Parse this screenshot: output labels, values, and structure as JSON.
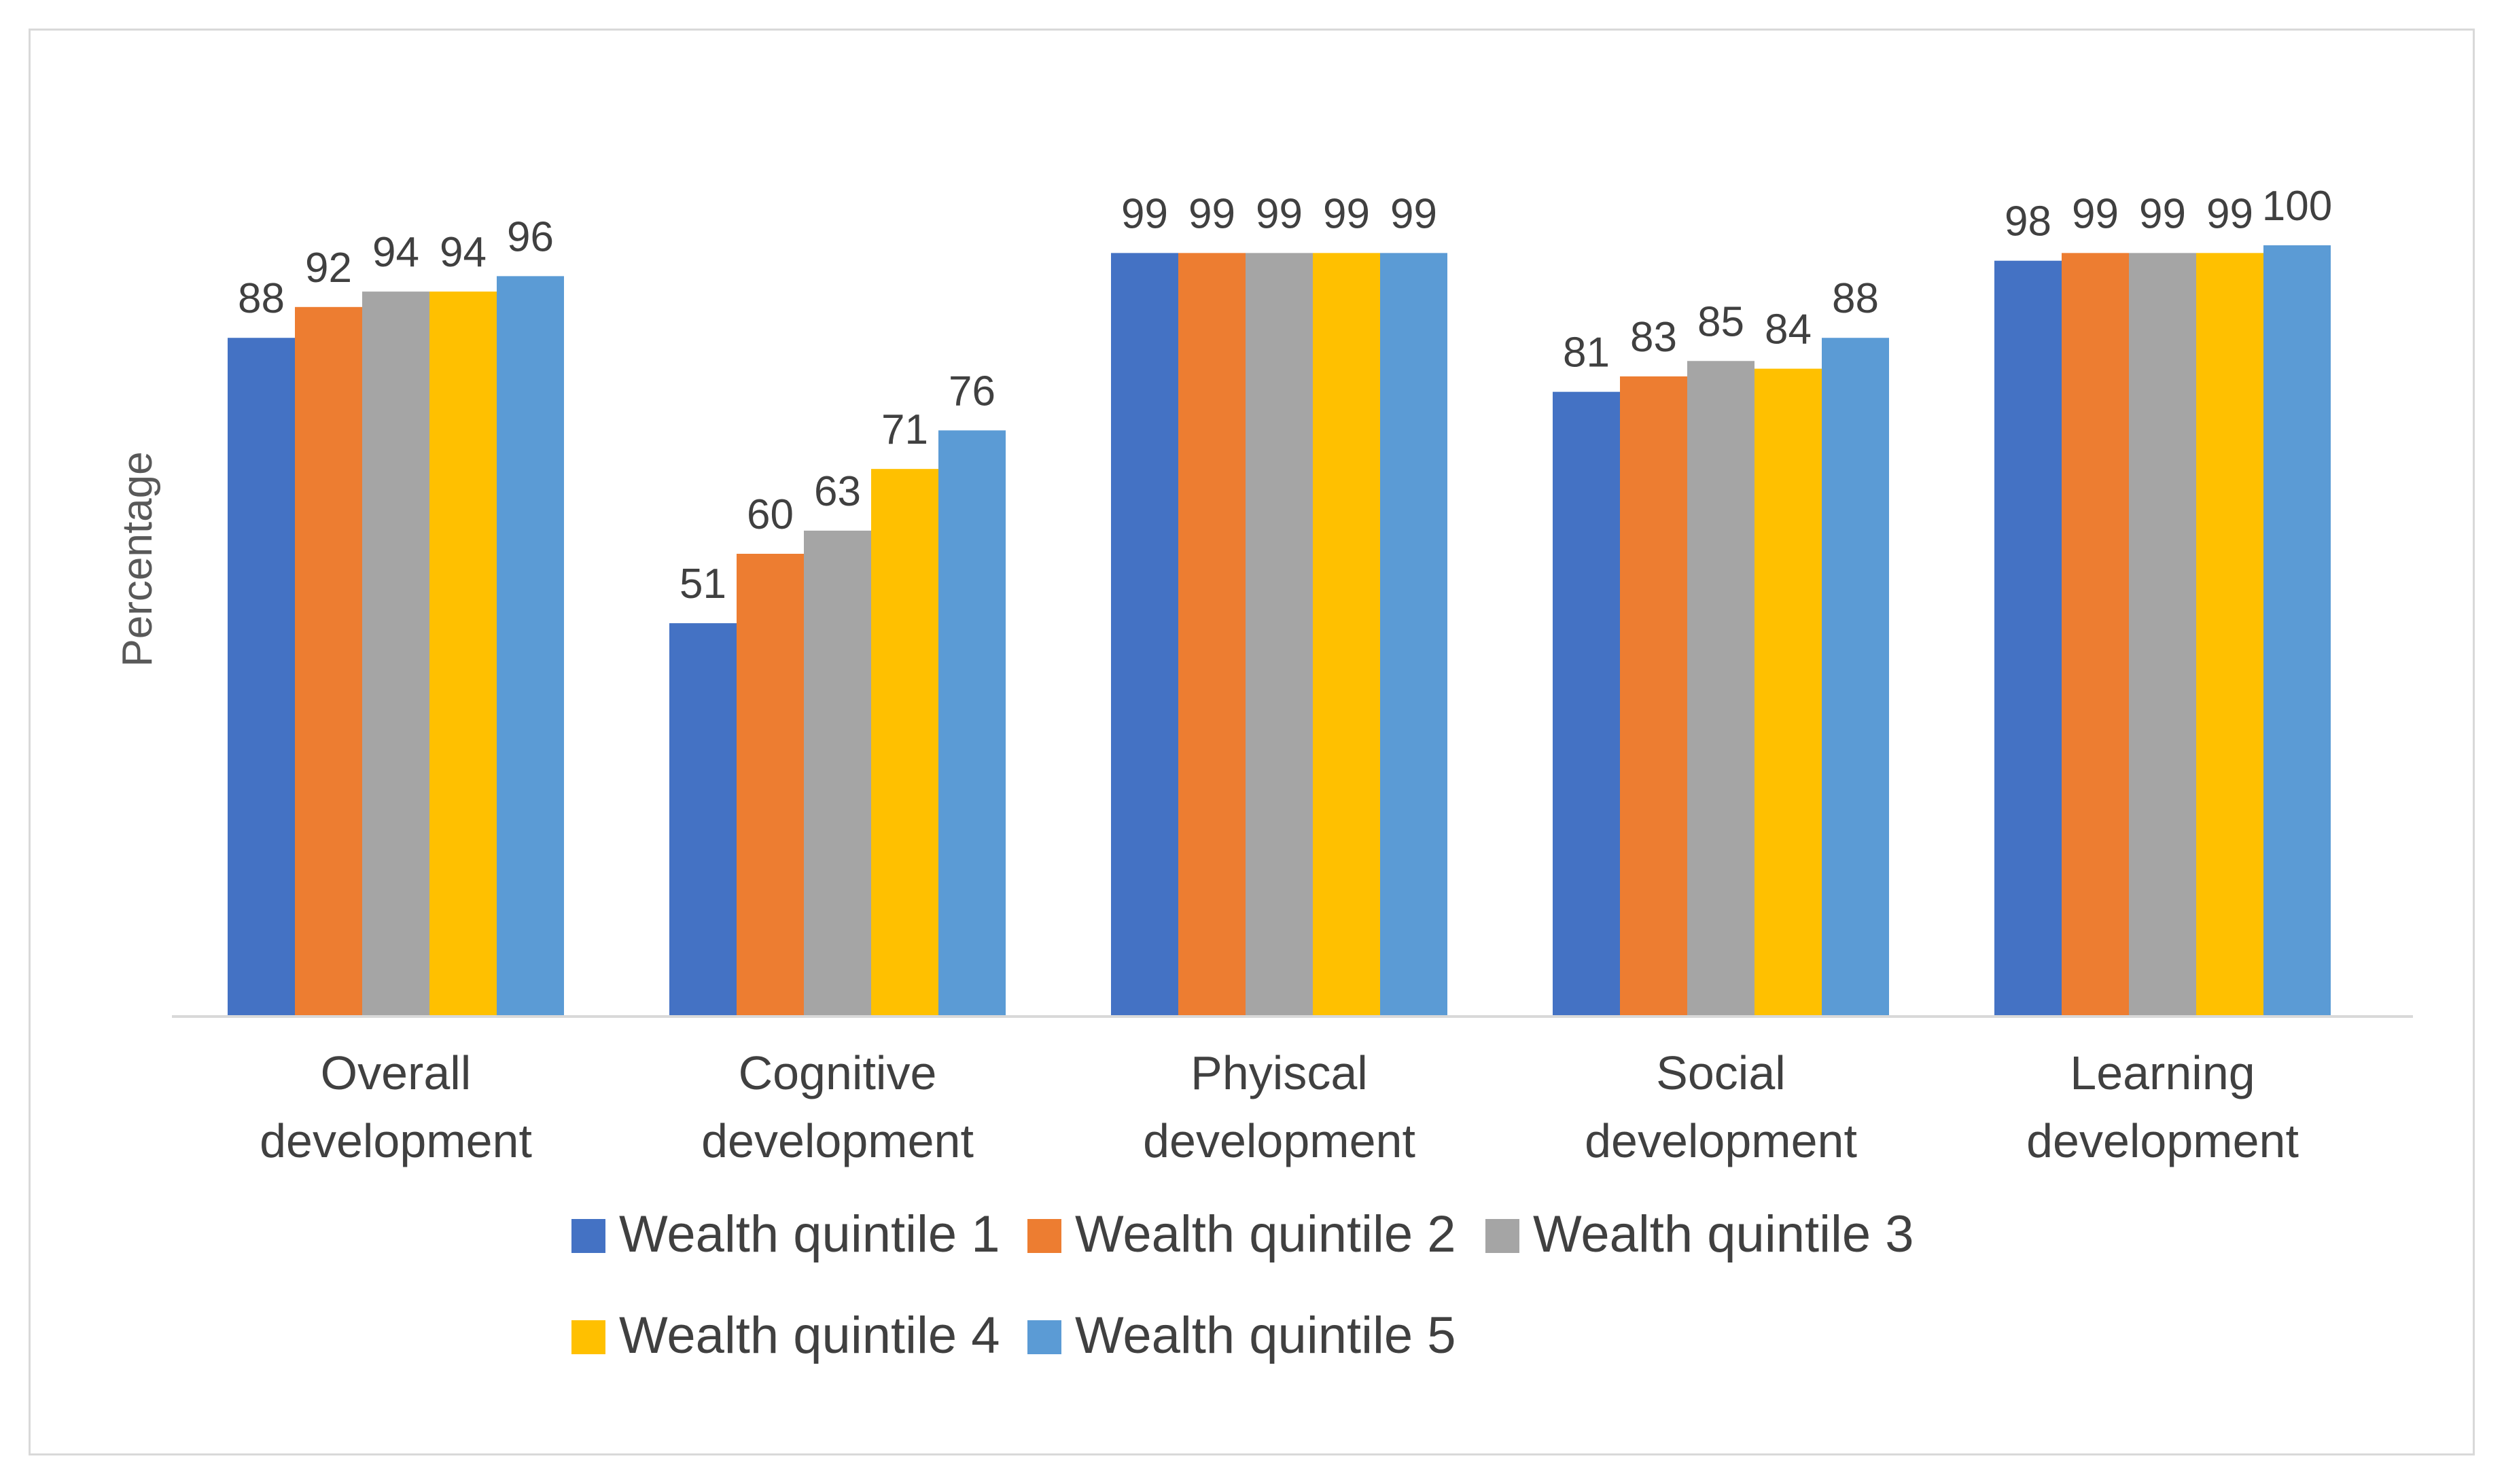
{
  "chart_data": {
    "type": "bar",
    "title": "",
    "xlabel": "",
    "ylabel": "Percentage",
    "ylim": [
      0,
      100
    ],
    "grid": false,
    "legend_position": "bottom",
    "categories": [
      [
        "Overall",
        "development"
      ],
      [
        "Cognitive",
        "development"
      ],
      [
        "Phyiscal",
        "development"
      ],
      [
        "Social",
        "development"
      ],
      [
        "Learning",
        "development"
      ]
    ],
    "series": [
      {
        "name": "Wealth quintile 1",
        "color": "#4472c4",
        "values": [
          88,
          51,
          99,
          81,
          98
        ],
        "labels": [
          "88",
          "51",
          "99",
          "81",
          "98"
        ]
      },
      {
        "name": "Wealth quintile 2",
        "color": "#ed7d31",
        "values": [
          92,
          60,
          99,
          83,
          99
        ],
        "labels": [
          "92",
          "60",
          "99",
          "83",
          "99"
        ]
      },
      {
        "name": "Wealth quintile 3",
        "color": "#a5a5a5",
        "values": [
          94,
          63,
          99,
          85,
          99
        ],
        "labels": [
          "94",
          "63",
          "99",
          "85",
          "99"
        ]
      },
      {
        "name": "Wealth quintile 4",
        "color": "#ffc000",
        "values": [
          94,
          71,
          99,
          84,
          99
        ],
        "labels": [
          "94",
          "71",
          "99",
          "84",
          "99"
        ]
      },
      {
        "name": "Wealth quintile 5",
        "color": "#5b9bd5",
        "values": [
          96,
          76,
          99,
          88,
          100
        ],
        "labels": [
          "96",
          "76",
          "99",
          "88",
          "100"
        ]
      }
    ]
  }
}
